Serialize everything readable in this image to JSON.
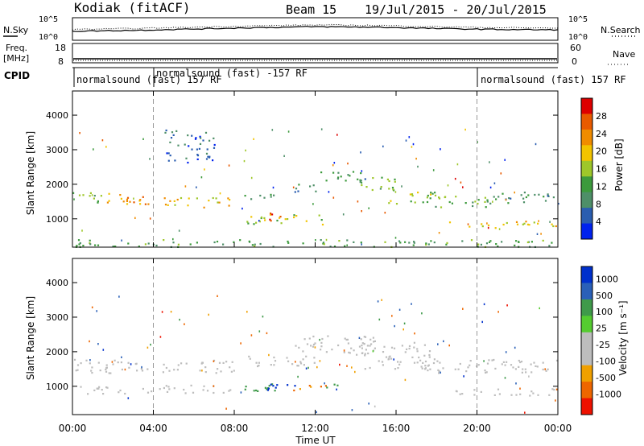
{
  "header": {
    "station": "Kodiak (fitACF)",
    "beam": "Beam 15",
    "dates": "19/Jul/2015 - 20/Jul/2015"
  },
  "strip_labels": {
    "nsky": "N.Sky",
    "nsearch": "N.Search",
    "freq_top": "Freq.",
    "freq_unit": "[MHz]",
    "nave": "Nave",
    "cpid": "CPID",
    "noise_ticks_left": [
      "10^5",
      "10^0"
    ],
    "noise_ticks_right": [
      "10^5",
      "10^0"
    ],
    "freq_ticks": [
      "18",
      "8"
    ],
    "nave_ticks": [
      "60",
      "0"
    ]
  },
  "cpid_segments": [
    {
      "label": "normalsound (fast) 157 RF"
    },
    {
      "label": "normalsound (fast) -157 RF"
    },
    {
      "label": "normalsound (fast) 157 RF"
    }
  ],
  "colors": {
    "power_scale": [
      "#0022ee",
      "#2a5db0",
      "#4e8f68",
      "#3c9a3c",
      "#9ec72a",
      "#f2c400",
      "#f08c00",
      "#e85a00",
      "#dd0000"
    ],
    "velocity_scale": [
      "#0030cc",
      "#2a60b8",
      "#3f9a4a",
      "#55cc30",
      "#bdbdbd",
      "#bdbdbd",
      "#f0a000",
      "#ee6600",
      "#ee1100"
    ],
    "ground_scatter": "#bdbdbd"
  },
  "chart_data": [
    {
      "type": "heatmap",
      "panel": "power",
      "ylabel": "Slant Range [km]",
      "xlabel": "",
      "x_ticks": [
        "00:00",
        "04:00",
        "08:00",
        "12:00",
        "16:00",
        "20:00",
        "00:00"
      ],
      "x_range_hours": [
        0,
        24
      ],
      "y_ticks": [
        "1000",
        "2000",
        "3000",
        "4000"
      ],
      "ylim": [
        180,
        4700
      ],
      "colorbar_label": "Power [dB]",
      "colorbar_ticks": [
        "4",
        "8",
        "12",
        "16",
        "20",
        "24",
        "28"
      ],
      "colorbar_range": [
        0,
        32
      ],
      "vertical_markers_hours": [
        4,
        20
      ],
      "regions": [
        {
          "t": [
            0,
            1.5
          ],
          "r": [
            1450,
            1800
          ],
          "value": 14
        },
        {
          "t": [
            1.5,
            5
          ],
          "r": [
            1400,
            1750
          ],
          "value": 22
        },
        {
          "t": [
            5,
            8
          ],
          "r": [
            1350,
            1650
          ],
          "value": 20
        },
        {
          "t": [
            8,
            10
          ],
          "r": [
            1550,
            1750
          ],
          "value": 10
        },
        {
          "t": [
            8.5,
            12.5
          ],
          "r": [
            850,
            1150
          ],
          "value": 16
        },
        {
          "t": [
            9.6,
            10.6
          ],
          "r": [
            950,
            1200
          ],
          "value": 28
        },
        {
          "t": [
            10.5,
            12
          ],
          "r": [
            1800,
            2050
          ],
          "value": 8
        },
        {
          "t": [
            12,
            14.5
          ],
          "r": [
            2050,
            2400
          ],
          "value": 10
        },
        {
          "t": [
            14,
            16
          ],
          "r": [
            1850,
            2300
          ],
          "value": 14
        },
        {
          "t": [
            15.5,
            18
          ],
          "r": [
            1450,
            1800
          ],
          "value": 16
        },
        {
          "t": [
            17.5,
            21
          ],
          "r": [
            1350,
            1700
          ],
          "value": 14
        },
        {
          "t": [
            20,
            24
          ],
          "r": [
            1450,
            1800
          ],
          "value": 10
        },
        {
          "t": [
            18.5,
            24
          ],
          "r": [
            750,
            950
          ],
          "value": 20
        },
        {
          "t": [
            4.5,
            7
          ],
          "r": [
            2650,
            3600
          ],
          "value": 6
        },
        {
          "t": [
            0,
            24
          ],
          "r": [
            200,
            420
          ],
          "value": 12
        }
      ]
    },
    {
      "type": "heatmap",
      "panel": "velocity",
      "ylabel": "Slant Range [km]",
      "xlabel": "Time UT",
      "x_ticks": [
        "00:00",
        "04:00",
        "08:00",
        "12:00",
        "16:00",
        "20:00",
        "00:00"
      ],
      "x_range_hours": [
        0,
        24
      ],
      "y_ticks": [
        "1000",
        "2000",
        "3000",
        "4000"
      ],
      "ylim": [
        180,
        4700
      ],
      "colorbar_label": "Velocity [m s⁻¹]",
      "colorbar_ticks": [
        "1000",
        "500",
        "100",
        "25",
        "-25",
        "-100",
        "-500",
        "-1000"
      ],
      "vertical_markers_hours": [
        4,
        20
      ],
      "regions": [
        {
          "t": [
            0,
            8
          ],
          "r": [
            1400,
            1800
          ],
          "value": 0
        },
        {
          "t": [
            8,
            12
          ],
          "r": [
            1600,
            1900
          ],
          "value": 0
        },
        {
          "t": [
            11,
            15
          ],
          "r": [
            1900,
            2500
          ],
          "value": 0
        },
        {
          "t": [
            14,
            18
          ],
          "r": [
            1500,
            2300
          ],
          "value": 0
        },
        {
          "t": [
            17,
            24
          ],
          "r": [
            1400,
            1800
          ],
          "value": 0
        },
        {
          "t": [
            18.5,
            24
          ],
          "r": [
            750,
            950
          ],
          "value": 0
        },
        {
          "t": [
            0,
            8
          ],
          "r": [
            800,
            1050
          ],
          "value": 0
        },
        {
          "t": [
            8.5,
            10.5
          ],
          "r": [
            850,
            1150
          ],
          "value": 150
        },
        {
          "t": [
            9.5,
            11
          ],
          "r": [
            900,
            1200
          ],
          "value": 800
        },
        {
          "t": [
            10.8,
            12.5
          ],
          "r": [
            900,
            1100
          ],
          "value": -300
        },
        {
          "t": [
            12.5,
            13.5
          ],
          "r": [
            950,
            1100
          ],
          "value": 200
        }
      ]
    },
    {
      "type": "line",
      "panel": "noise",
      "series": [
        {
          "name": "N.Sky"
        },
        {
          "name": "N.Search"
        }
      ],
      "x_range_hours": [
        0,
        24
      ],
      "ylim_log10": [
        0,
        5
      ],
      "y": [
        2.0,
        2.2,
        2.5,
        2.8,
        3.0,
        2.9,
        2.6,
        2.4,
        2.3
      ]
    }
  ],
  "footer": {
    "time_label": "Time UT"
  }
}
